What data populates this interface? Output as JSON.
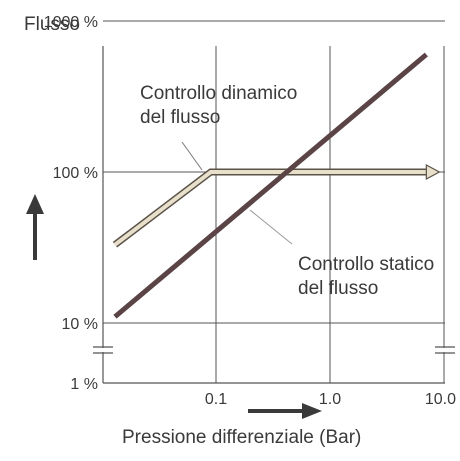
{
  "chart_data": {
    "type": "line",
    "ylabel": "Flusso",
    "xlabel": "Pressione differenziale (Bar)",
    "x_scale": "log",
    "y_scale": "log",
    "x_ticks": [
      {
        "value": 0.1,
        "label": "0.1"
      },
      {
        "value": 1.0,
        "label": "1.0"
      },
      {
        "value": 10.0,
        "label": "10.0"
      }
    ],
    "y_ticks": [
      {
        "value": 1,
        "label": "1 %"
      },
      {
        "value": 10,
        "label": "10 %"
      },
      {
        "value": 100,
        "label": "100 %"
      },
      {
        "value": 1000,
        "label": "1000 %"
      }
    ],
    "grid": true,
    "series": [
      {
        "name": "Controllo dinamico del flusso",
        "label_lines": [
          "Controllo dinamico",
          "del flusso"
        ],
        "color": "#e9e0cc",
        "edge_color": "#5a5247",
        "points": [
          [
            0.013,
            33
          ],
          [
            0.09,
            100
          ],
          [
            7.0,
            100
          ]
        ]
      },
      {
        "name": "Controllo statico del flusso",
        "label_lines": [
          "Controllo statico",
          "del flusso"
        ],
        "color": "#5b4446",
        "points": [
          [
            0.013,
            11
          ],
          [
            7.0,
            600
          ]
        ]
      }
    ]
  }
}
